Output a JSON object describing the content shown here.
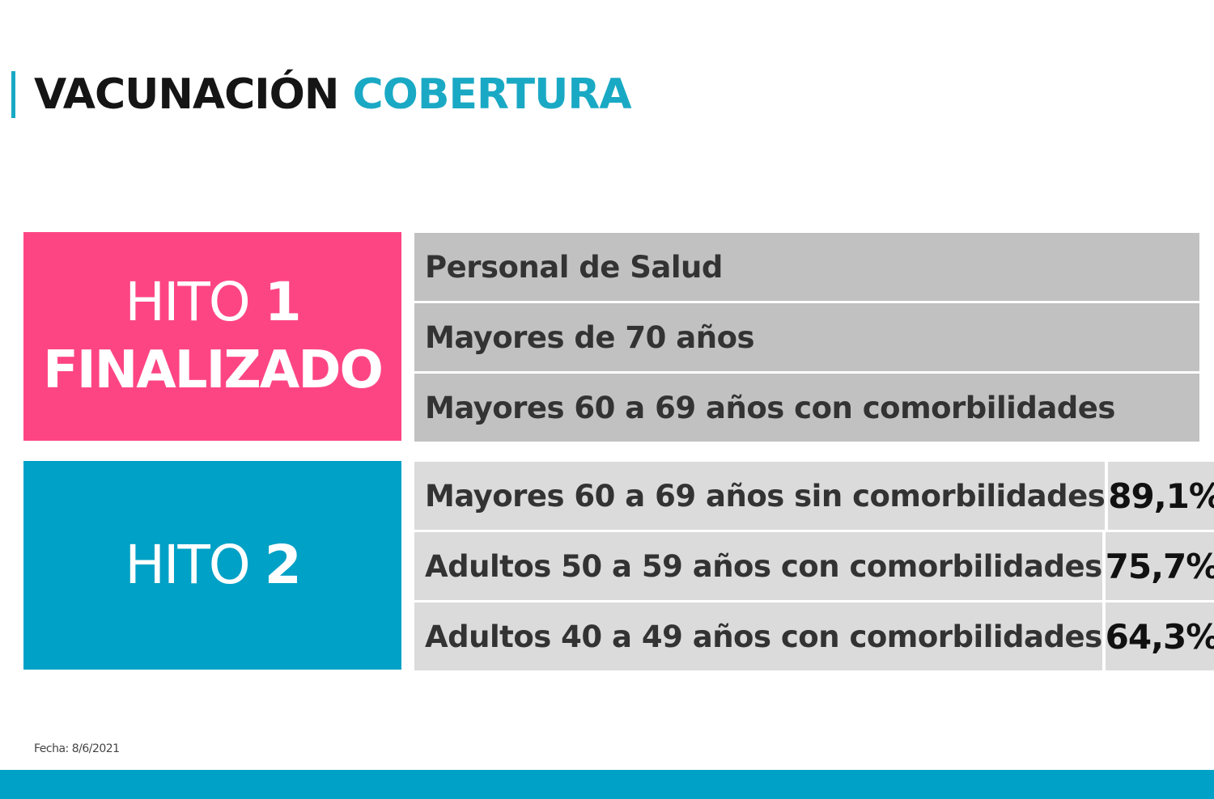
{
  "title": {
    "part1": "VACUNACIÓN",
    "part2": "COBERTURA"
  },
  "hito1": {
    "word": "HITO",
    "number": "1",
    "status": "FINALIZADO",
    "color": "#fe4584",
    "rows": [
      {
        "label": "Personal de Salud"
      },
      {
        "label": "Mayores de 70 años"
      },
      {
        "label": "Mayores 60 a 69 años con comorbilidades"
      }
    ]
  },
  "hito2": {
    "word": "HITO",
    "number": "2",
    "color": "#00a1c6",
    "rows": [
      {
        "label": "Mayores 60 a 69 años sin comorbilidades",
        "value": "89,1%"
      },
      {
        "label": "Adultos 50 a 59 años con comorbilidades",
        "value": "75,7%"
      },
      {
        "label": "Adultos 40 a 49 años con comorbilidades",
        "value": "64,3%"
      }
    ]
  },
  "fecha": "Fecha: 8/6/2021",
  "colors": {
    "accent": "#1aa9c4",
    "footer": "#00a1c6"
  }
}
